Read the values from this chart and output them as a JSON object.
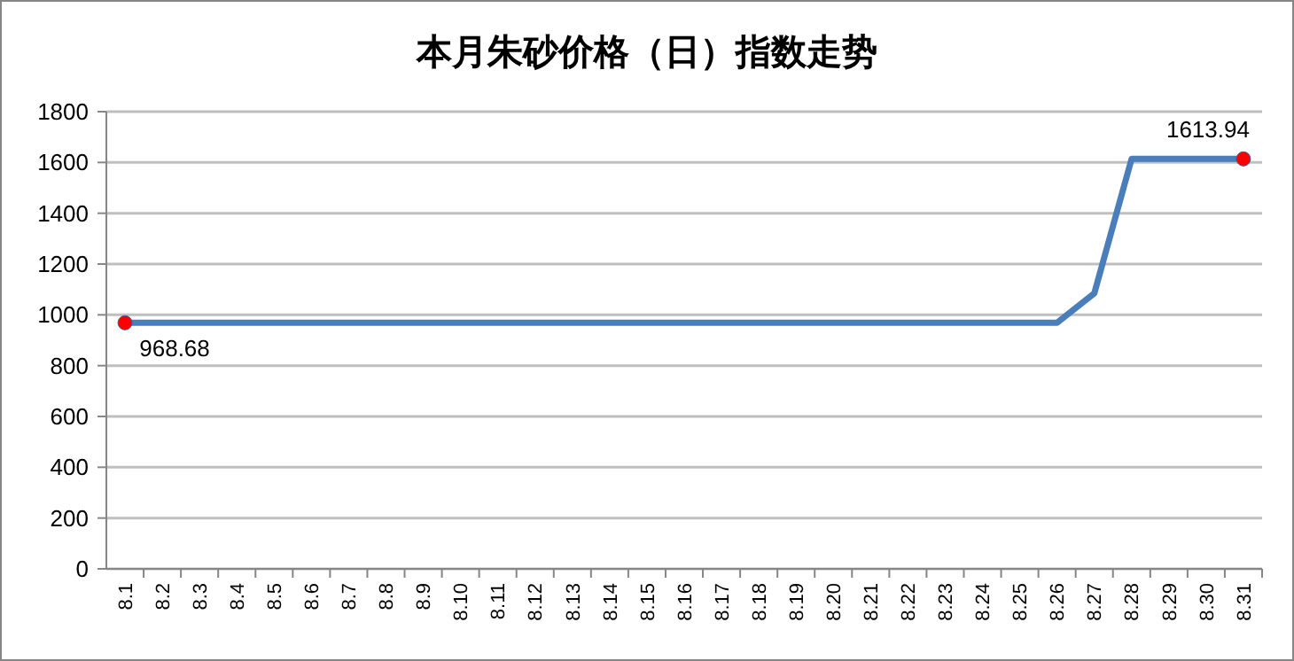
{
  "chart_data": {
    "type": "line",
    "title": "本月朱砂价格（日）指数走势",
    "categories": [
      "8.1",
      "8.2",
      "8.3",
      "8.4",
      "8.5",
      "8.6",
      "8.7",
      "8.8",
      "8.9",
      "8.10",
      "8.11",
      "8.12",
      "8.13",
      "8.14",
      "8.15",
      "8.16",
      "8.17",
      "8.18",
      "8.19",
      "8.20",
      "8.21",
      "8.22",
      "8.23",
      "8.24",
      "8.25",
      "8.26",
      "8.27",
      "8.28",
      "8.29",
      "8.30",
      "8.31"
    ],
    "series": [
      {
        "color": "#4a7ebb",
        "values": [
          968.68,
          968.68,
          968.68,
          968.68,
          968.68,
          968.68,
          968.68,
          968.68,
          968.68,
          968.68,
          968.68,
          968.68,
          968.68,
          968.68,
          968.68,
          968.68,
          968.68,
          968.68,
          968.68,
          968.68,
          968.68,
          968.68,
          968.68,
          968.68,
          968.68,
          968.68,
          1085,
          1613.94,
          1613.94,
          1613.94,
          1613.94
        ]
      },
      {
        "type": "scatter",
        "color": "#ff0000",
        "x": [
          "8.1",
          "8.31"
        ],
        "values": [
          968.68,
          1613.94
        ],
        "value_labels": [
          "968.68",
          "1613.94"
        ]
      }
    ],
    "ylim": [
      0,
      1800
    ],
    "yticks": [
      0,
      200,
      400,
      600,
      800,
      1000,
      1200,
      1400,
      1600,
      1800
    ],
    "grid": "y",
    "line_style": "solid"
  }
}
